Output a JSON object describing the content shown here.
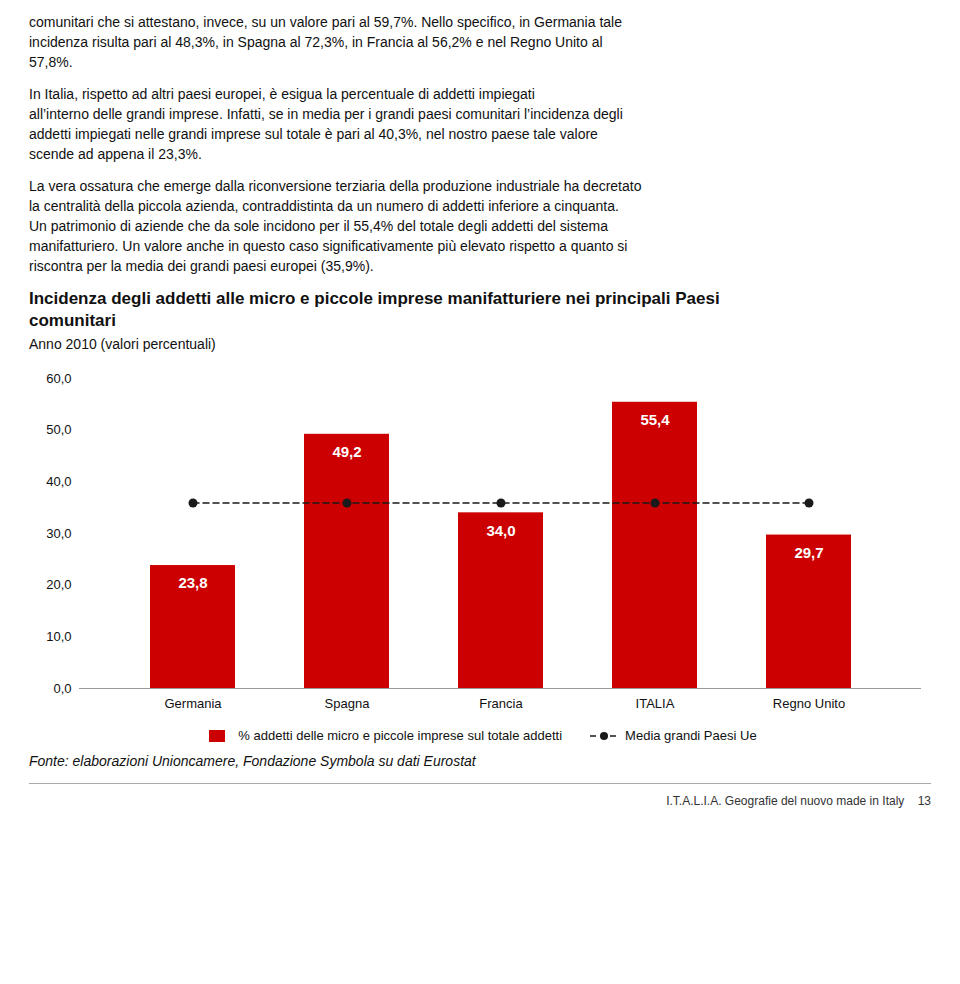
{
  "chart_data": {
    "type": "bar",
    "title": "Incidenza degli addetti alle micro e piccole imprese manifatturiere nei principali Paesi\ncomunitari",
    "subtitle": "Anno 2010 (valori percentuali)",
    "annotations": [
      "comunitari che si attestano, invece, su un valore pari al 59,7%. Nello specifico, in Germania tale\nincidenza risulta pari al 48,3%, in Spagna al 72,3%, in Francia al 56,2% e nel Regno Unito al\n57,8%.",
      "In Italia, rispetto ad altri paesi europei, è esigua la percentuale di addetti impiegati\nall’interno delle grandi imprese. Infatti, se in media per i grandi paesi comunitari l’incidenza degli\naddetti impiegati nelle grandi imprese sul totale è pari al 40,3%, nel nostro paese tale valore\nscende ad appena il 23,3%.",
      "La vera ossatura che emerge dalla riconversione terziaria della produzione industriale ha decretato\nla centralità della piccola azienda, contraddistinta da un numero di addetti inferiore a cinquanta.\nUn patrimonio di aziende che da sole incidono per il 55,4% del totale degli addetti del sistema\nmanifatturiero. Un valore anche in questo caso significativamente più elevato rispetto a quanto si\nriscontra per la media dei grandi paesi europei (35,9%)."
    ],
    "caption": "Fonte: elaborazioni Unioncamere, Fondazione Symbola su dati Eurostat",
    "footer": "I.T.A.L.I.A. Geografie del nuovo made in Italy    13",
    "categories": [
      "Germania",
      "Spagna",
      "Francia",
      "ITALIA",
      "Regno Unito"
    ],
    "series": [
      {
        "name": "% addetti delle micro e piccole imprese sul totale addetti",
        "type": "bar",
        "color": "#cc0000",
        "values": [
          23.8,
          49.2,
          34.0,
          55.4,
          29.7
        ],
        "value_labels": [
          "23,8",
          "49,2",
          "34,0",
          "55,4",
          "29,7"
        ]
      },
      {
        "name": "Media grandi Paesi Ue",
        "type": "line",
        "color": "#1a1a1a",
        "line_style": "dashed",
        "marker": "o",
        "values": [
          35.9,
          35.9,
          35.9,
          35.9,
          35.9
        ]
      }
    ],
    "ylim": [
      0,
      60
    ],
    "yticks": [
      {
        "value": 0,
        "label": "0,0"
      },
      {
        "value": 10,
        "label": "10,0"
      },
      {
        "value": 20,
        "label": "20,0"
      },
      {
        "value": 30,
        "label": "30,0"
      },
      {
        "value": 40,
        "label": "40,0"
      },
      {
        "value": 50,
        "label": "50,0"
      },
      {
        "value": 60,
        "label": "60,0"
      }
    ],
    "grid": false,
    "data_labels": true,
    "legend": "bottom"
  }
}
